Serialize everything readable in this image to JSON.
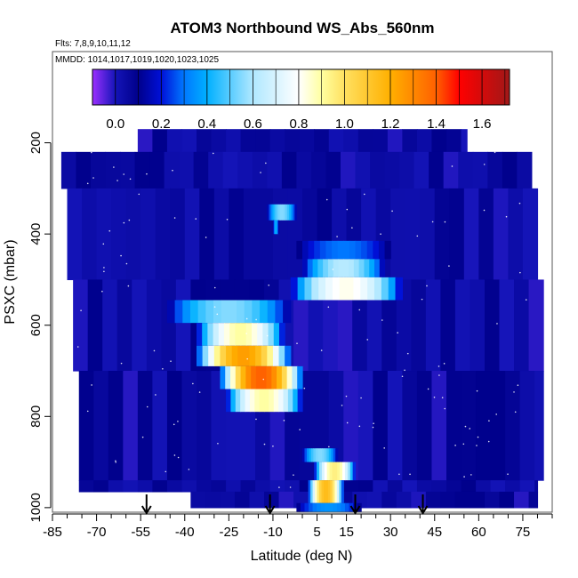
{
  "chart_data": {
    "type": "heatmap",
    "title": "ATOM3 Northbound WS_Abs_560nm",
    "subtitle_lines": [
      "Flts: 7,8,9,10,11,12",
      "MMDD: 1014,1017,1019,1020,1023,1025"
    ],
    "xlabel": "Latitude (deg N)",
    "ylabel": "PSXC (mbar)",
    "xlim": [
      -85,
      85
    ],
    "ylim": [
      1010,
      0
    ],
    "x_tick_labels": [
      "-85",
      "-70",
      "-55",
      "-40",
      "-25",
      "-10",
      "5",
      "15",
      "30",
      "45",
      "60",
      "75"
    ],
    "x_tick_values": [
      -85,
      -70,
      -55,
      -40,
      -25,
      -10,
      5,
      15,
      30,
      45,
      60,
      75
    ],
    "y_tick_labels": [
      "200",
      "400",
      "600",
      "800",
      "1000"
    ],
    "y_tick_values": [
      200,
      400,
      600,
      800,
      1000
    ],
    "colorbar": {
      "range": [
        -0.1,
        1.72
      ],
      "tick_labels": [
        "0.0",
        "0.2",
        "0.4",
        "0.6",
        "0.8",
        "1.0",
        "1.2",
        "1.4",
        "1.6"
      ],
      "tick_values": [
        0.0,
        0.2,
        0.4,
        0.6,
        0.8,
        1.0,
        1.2,
        1.4,
        1.6
      ],
      "stops": [
        {
          "value": -0.1,
          "color": "#9b30ff"
        },
        {
          "value": 0.0,
          "color": "#1414b8"
        },
        {
          "value": 0.1,
          "color": "#00008b"
        },
        {
          "value": 0.2,
          "color": "#0010d8"
        },
        {
          "value": 0.3,
          "color": "#0078ff"
        },
        {
          "value": 0.4,
          "color": "#00b0ff"
        },
        {
          "value": 0.6,
          "color": "#b0e8ff"
        },
        {
          "value": 0.8,
          "color": "#ffffff"
        },
        {
          "value": 0.9,
          "color": "#ffffa0"
        },
        {
          "value": 1.0,
          "color": "#ffe060"
        },
        {
          "value": 1.2,
          "color": "#ffb000"
        },
        {
          "value": 1.4,
          "color": "#ff6000"
        },
        {
          "value": 1.5,
          "color": "#ff0000"
        },
        {
          "value": 1.72,
          "color": "#a01818"
        }
      ]
    },
    "background_value": 0.05,
    "domain_rows": [
      {
        "p": [
          170,
          220
        ],
        "lat": [
          -56,
          56
        ]
      },
      {
        "p": [
          220,
          300
        ],
        "lat": [
          -82,
          78
        ]
      },
      {
        "p": [
          300,
          500
        ],
        "lat": [
          -80,
          80
        ]
      },
      {
        "p": [
          500,
          700
        ],
        "lat": [
          -78,
          82
        ]
      },
      {
        "p": [
          700,
          940
        ],
        "lat": [
          -76,
          82
        ]
      },
      {
        "p": [
          940,
          965
        ],
        "lat": [
          -76,
          80
        ]
      },
      {
        "p": [
          965,
          1000
        ],
        "lat": [
          -38,
          80
        ]
      }
    ],
    "plumes": [
      {
        "lat_range": [
          -12,
          -2
        ],
        "p_range": [
          335,
          370
        ],
        "value": 0.55
      },
      {
        "lat_range": [
          -10,
          -8
        ],
        "p_range": [
          370,
          400
        ],
        "value": 0.4
      },
      {
        "lat_range": [
          -2,
          30
        ],
        "p_range": [
          415,
          455
        ],
        "value": 0.3
      },
      {
        "lat_range": [
          0,
          28
        ],
        "p_range": [
          455,
          495
        ],
        "value": 0.62
      },
      {
        "lat_range": [
          -4,
          34
        ],
        "p_range": [
          495,
          545
        ],
        "value": 0.82
      },
      {
        "lat_range": [
          -46,
          -4
        ],
        "p_range": [
          545,
          595
        ],
        "value": 0.55
      },
      {
        "lat_range": [
          -36,
          -6
        ],
        "p_range": [
          595,
          645
        ],
        "value": 0.9
      },
      {
        "lat_range": [
          -36,
          -4
        ],
        "p_range": [
          645,
          690
        ],
        "value": 1.25
      },
      {
        "lat_range": [
          -28,
          0
        ],
        "p_range": [
          690,
          740
        ],
        "value": 1.4
      },
      {
        "lat_range": [
          -26,
          0
        ],
        "p_range": [
          740,
          790
        ],
        "value": 0.9
      },
      {
        "lat_range": [
          0,
          12
        ],
        "p_range": [
          870,
          900
        ],
        "value": 0.55
      },
      {
        "lat_range": [
          4,
          18
        ],
        "p_range": [
          900,
          940
        ],
        "value": 0.95
      },
      {
        "lat_range": [
          2,
          14
        ],
        "p_range": [
          940,
          990
        ],
        "value": 1.15
      },
      {
        "lat_range": [
          -2,
          20
        ],
        "p_range": [
          990,
          1010
        ],
        "value": 0.35
      }
    ],
    "arrows_lat": [
      -53,
      -11,
      18,
      41
    ]
  }
}
